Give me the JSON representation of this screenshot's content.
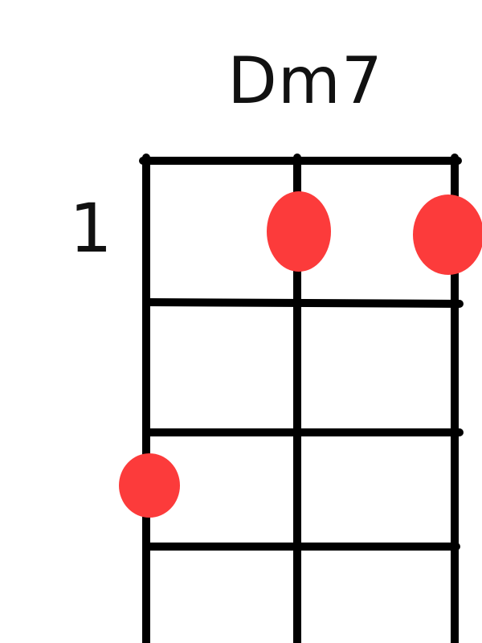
{
  "chord": {
    "name": "Dm7",
    "start_fret_label": "1"
  },
  "diagram": {
    "strings_visible": 3,
    "frets_visible": 4,
    "dots": [
      {
        "string": 2,
        "fret": 1
      },
      {
        "string": 3,
        "fret": 1
      },
      {
        "string": 1,
        "fret": 3
      }
    ]
  },
  "colors": {
    "line": "#000000",
    "dot": "#fc3b3b",
    "text": "#111111"
  }
}
